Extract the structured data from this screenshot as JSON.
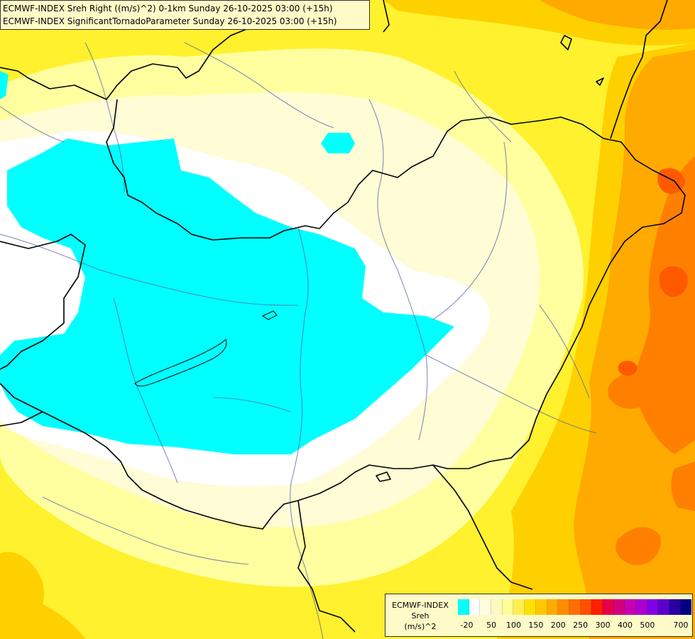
{
  "header": {
    "line1": "ECMWF-INDEX Sreh Right ((m/s)^2) 0-1km Sunday 26-10-2025 03:00 (+15h)",
    "line2": "ECMWF-INDEX SignificantTornadoParameter Sunday 26-10-2025 03:00 (+15h)"
  },
  "legend": {
    "model": "ECMWF-INDEX",
    "variable": "Sreh",
    "unit": "(m/s)^2",
    "colors": [
      "#00ffff",
      "#ffffff",
      "#fffde0",
      "#fff9c0",
      "#ffff96",
      "#fff050",
      "#ffe000",
      "#ffc800",
      "#ffaa00",
      "#ff8c00",
      "#ff6e00",
      "#ff5000",
      "#ff1e00",
      "#e6004b",
      "#d2007d",
      "#c800b4",
      "#aa00d2",
      "#8200e6",
      "#5a00c8",
      "#2800a0",
      "#000080"
    ],
    "ticks": [
      "-20",
      "50",
      "100",
      "150",
      "200",
      "250",
      "300",
      "400",
      "500",
      "700"
    ]
  },
  "map": {
    "fill_colors": {
      "cyan": "#00ffff",
      "white": "#ffffff",
      "pale": "#fffcd6",
      "light_yellow": "#ffffa0",
      "yellow": "#fff12e",
      "gold": "#ffd000",
      "orange": "#ffaa00",
      "dark_orange": "#ff8000",
      "red_orange": "#ff5a00"
    },
    "border_color": "#000000",
    "river_color": "#5a6aa8"
  }
}
